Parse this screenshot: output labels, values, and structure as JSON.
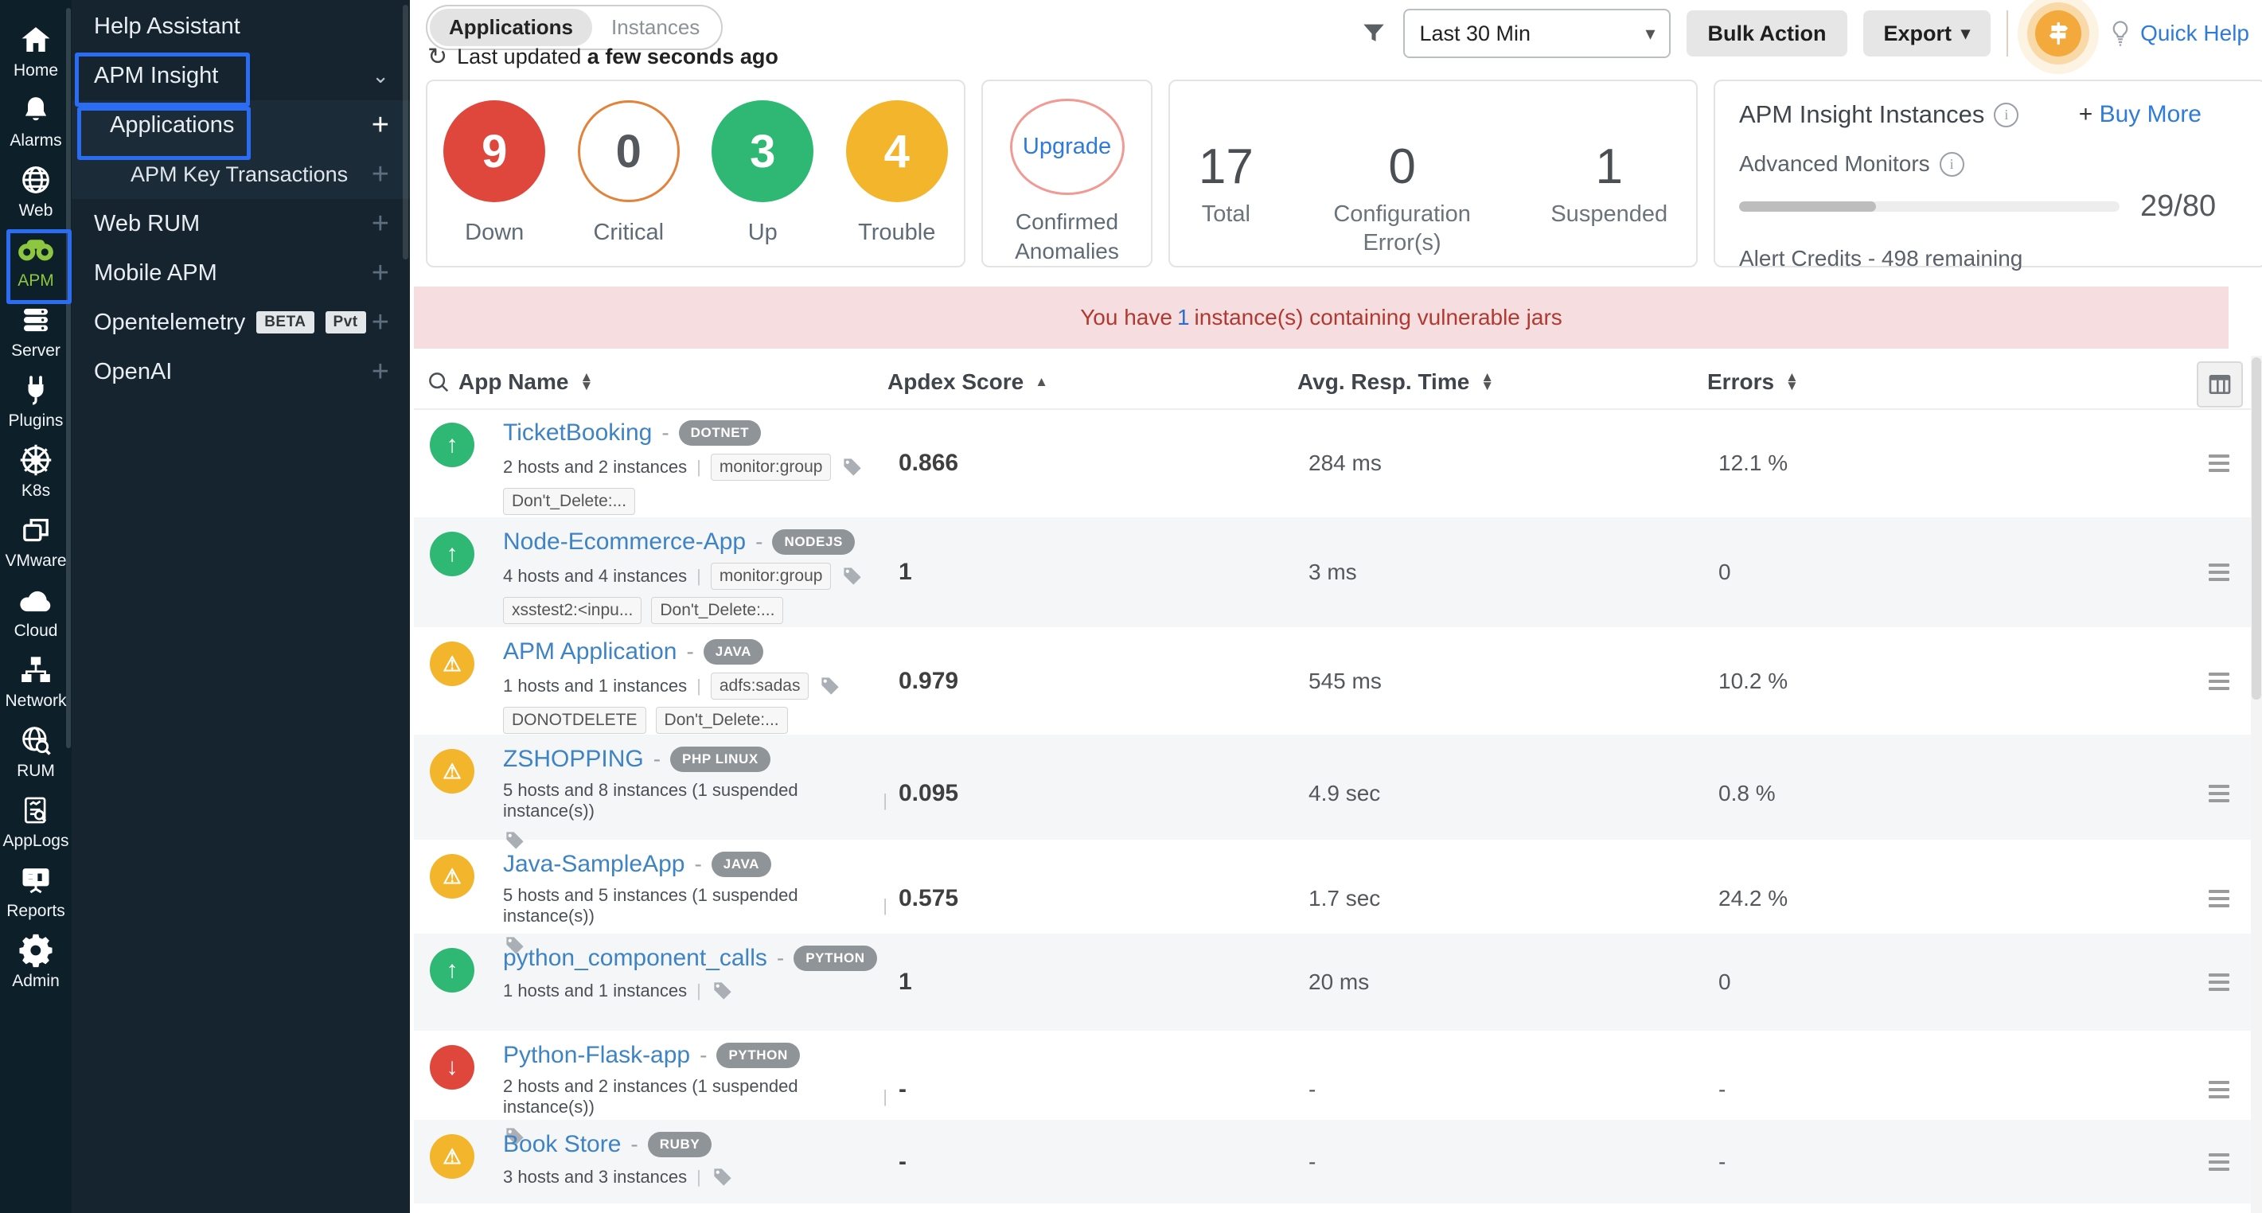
{
  "colors": {
    "rail_bg": "#0d2029",
    "menu_bg": "#15242f",
    "submenu_bg": "#1b2b38",
    "highlight_blue": "#2b6cf5",
    "down_red": "#e0473c",
    "up_green": "#2eb873",
    "trouble_yellow": "#f2b52b",
    "critical_orange": "#e2823b",
    "link_blue": "#2f7bd9",
    "banner_bg": "#f5dde0",
    "banner_text": "#b03a32",
    "apm_green": "#8dc63f",
    "avatar_orange": "#f3a93c"
  },
  "rail": {
    "items": [
      {
        "id": "home",
        "label": "Home",
        "icon": "home-icon",
        "active": false
      },
      {
        "id": "alarms",
        "label": "Alarms",
        "icon": "bell-icon",
        "active": false
      },
      {
        "id": "web",
        "label": "Web",
        "icon": "globe-icon",
        "active": false
      },
      {
        "id": "apm",
        "label": "APM",
        "icon": "binoculars-icon",
        "active": true
      },
      {
        "id": "server",
        "label": "Server",
        "icon": "server-icon",
        "active": false
      },
      {
        "id": "plugins",
        "label": "Plugins",
        "icon": "plug-icon",
        "active": false
      },
      {
        "id": "k8s",
        "label": "K8s",
        "icon": "helm-wheel-icon",
        "active": false
      },
      {
        "id": "vmware",
        "label": "VMware",
        "icon": "layers-icon",
        "active": false
      },
      {
        "id": "cloud",
        "label": "Cloud",
        "icon": "cloud-icon",
        "active": false
      },
      {
        "id": "network",
        "label": "Network",
        "icon": "network-icon",
        "active": false
      },
      {
        "id": "rum",
        "label": "RUM",
        "icon": "globe-search-icon",
        "active": false
      },
      {
        "id": "applogs",
        "label": "AppLogs",
        "icon": "log-search-icon",
        "active": false
      },
      {
        "id": "reports",
        "label": "Reports",
        "icon": "presentation-icon",
        "active": false
      },
      {
        "id": "admin",
        "label": "Admin",
        "icon": "gear-icon",
        "active": false
      }
    ]
  },
  "menu": {
    "items": [
      {
        "id": "help-assistant",
        "label": "Help Assistant",
        "indent": 0,
        "right": "none",
        "submenu": false
      },
      {
        "id": "apm-insight",
        "label": "APM Insight",
        "indent": 0,
        "right": "chevron",
        "submenu": false
      },
      {
        "id": "applications",
        "label": "Applications",
        "indent": 1,
        "right": "plus-bright",
        "submenu": true
      },
      {
        "id": "apm-key-transactions",
        "label": "APM Key Transactions",
        "indent": 2,
        "right": "plus-faint",
        "submenu": true
      },
      {
        "id": "web-rum",
        "label": "Web RUM",
        "indent": 0,
        "right": "plus-faint",
        "submenu": false
      },
      {
        "id": "mobile-apm",
        "label": "Mobile APM",
        "indent": 0,
        "right": "plus-faint",
        "submenu": false
      },
      {
        "id": "opentelemetry",
        "label": "Opentelemetry",
        "indent": 0,
        "right": "plus-faint",
        "submenu": false,
        "badges": [
          "BETA",
          "Pvt"
        ]
      },
      {
        "id": "openai",
        "label": "OpenAI",
        "indent": 0,
        "right": "plus-faint",
        "submenu": false
      }
    ]
  },
  "topbar": {
    "tabs": [
      "Applications",
      "Instances"
    ],
    "last_updated_prefix": "Last updated",
    "last_updated_value": "a few seconds ago",
    "time_range": "Last 30 Min",
    "bulk_action": "Bulk Action",
    "export": "Export",
    "quick_help": "Quick Help"
  },
  "summary": {
    "status": [
      {
        "label": "Down",
        "value": "9",
        "style": "down"
      },
      {
        "label": "Critical",
        "value": "0",
        "style": "critical"
      },
      {
        "label": "Up",
        "value": "3",
        "style": "up"
      },
      {
        "label": "Trouble",
        "value": "4",
        "style": "trouble"
      }
    ],
    "anomalies": {
      "button": "Upgrade",
      "label": "Confirmed Anomalies"
    },
    "stats": [
      {
        "value": "17",
        "label": "Total"
      },
      {
        "value": "0",
        "label": "Configuration Error(s)"
      },
      {
        "value": "1",
        "label": "Suspended"
      }
    ],
    "instances_panel": {
      "title": "APM Insight Instances",
      "buy_more_plus": "+",
      "buy_more": "Buy More",
      "advanced_monitors": "Advanced Monitors",
      "usage": "29/80",
      "usage_pct": 36,
      "alert_credits": "Alert Credits - 498 remaining"
    }
  },
  "banner": {
    "prefix": "You have",
    "count": "1",
    "suffix": "instance(s) containing vulnerable jars"
  },
  "table": {
    "headers": [
      {
        "label": "App Name",
        "sort": "both",
        "search": true
      },
      {
        "label": "Apdex Score",
        "sort": "asc"
      },
      {
        "label": "Avg. Resp. Time",
        "sort": "both"
      },
      {
        "label": "Errors",
        "sort": "both"
      }
    ],
    "rows": [
      {
        "status": "up",
        "name": "TicketBooking",
        "type": "DOTNET",
        "meta": "2 hosts and 2 instances",
        "chips": [
          "monitor:group"
        ],
        "tag_icon_inline": true,
        "line2_chips": [
          "Don't_Delete:..."
        ],
        "line2_tag_icon": false,
        "apdex": "0.866",
        "avg_resp": "284 ms",
        "errors": "12.1 %",
        "height": 137
      },
      {
        "status": "up",
        "name": "Node-Ecommerce-App",
        "type": "NODEJS",
        "meta": "4 hosts and 4 instances",
        "chips": [
          "monitor:group"
        ],
        "tag_icon_inline": true,
        "line2_chips": [
          "xsstest2:<inpu...",
          "Don't_Delete:..."
        ],
        "line2_tag_icon": false,
        "apdex": "1",
        "avg_resp": "3 ms",
        "errors": "0",
        "height": 138
      },
      {
        "status": "warn",
        "name": "APM Application",
        "type": "JAVA",
        "meta": "1 hosts and 1 instances",
        "chips": [
          "adfs:sadas"
        ],
        "tag_icon_inline": true,
        "line2_chips": [
          "DONOTDELETE",
          "Don't_Delete:..."
        ],
        "line2_tag_icon": false,
        "apdex": "0.979",
        "avg_resp": "545 ms",
        "errors": "10.2 %",
        "height": 135
      },
      {
        "status": "warn",
        "name": "ZSHOPPING",
        "type": "PHP LINUX",
        "meta": "5 hosts and 8 instances (1 suspended instance(s))",
        "chips": [],
        "tag_icon_inline": false,
        "line2_chips": [],
        "line2_tag_icon": true,
        "apdex": "0.095",
        "avg_resp": "4.9 sec",
        "errors": "0.8 %",
        "height": 132
      },
      {
        "status": "warn",
        "name": "Java-SampleApp",
        "type": "JAVA",
        "meta": "5 hosts and 5 instances (1 suspended instance(s))",
        "chips": [],
        "tag_icon_inline": false,
        "line2_chips": [],
        "line2_tag_icon": true,
        "apdex": "0.575",
        "avg_resp": "1.7 sec",
        "errors": "24.2 %",
        "height": 118
      },
      {
        "status": "up",
        "name": "python_component_calls",
        "type": "PYTHON",
        "meta": "1 hosts and 1 instances",
        "chips": [],
        "tag_icon_inline": true,
        "line2_chips": [],
        "line2_tag_icon": false,
        "apdex": "1",
        "avg_resp": "20 ms",
        "errors": "0",
        "height": 122
      },
      {
        "status": "down",
        "name": "Python-Flask-app",
        "type": "PYTHON",
        "meta": "2 hosts and 2 instances (1 suspended instance(s))",
        "chips": [],
        "tag_icon_inline": false,
        "line2_chips": [],
        "line2_tag_icon": true,
        "apdex": "-",
        "avg_resp": "-",
        "errors": "-",
        "height": 112
      },
      {
        "status": "warn",
        "name": "Book Store",
        "type": "RUBY",
        "meta": "3 hosts and 3 instances",
        "chips": [],
        "tag_icon_inline": true,
        "line2_chips": [],
        "line2_tag_icon": false,
        "apdex": "-",
        "avg_resp": "-",
        "errors": "-",
        "height": 105
      }
    ],
    "partial_next_row_status": "down"
  }
}
